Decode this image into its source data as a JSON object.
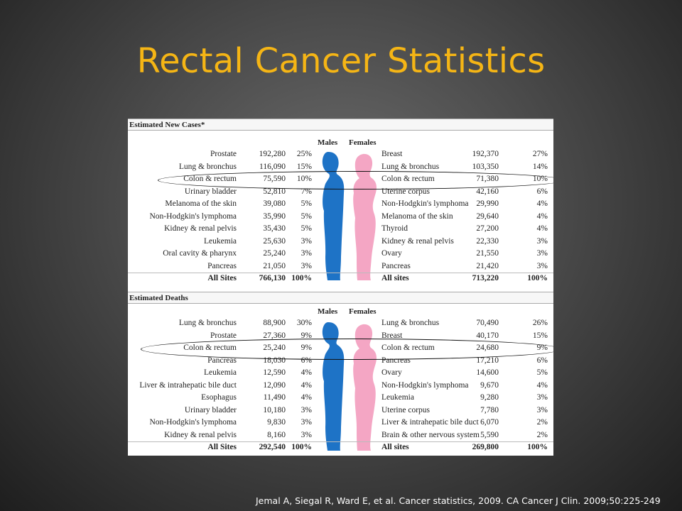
{
  "slide": {
    "title": "Rectal Cancer Statistics",
    "citation": "Jemal A, Siegal R, Ward E, et al. Cancer statistics, 2009. CA Cancer J Clin. 2009;50:225-249"
  },
  "table": {
    "colors": {
      "males": "#1e73c6",
      "females": "#f4a6c4",
      "title": "#f5b515"
    },
    "new_cases": {
      "header": "Estimated New Cases*",
      "males_label": "Males",
      "females_label": "Females",
      "rows": [
        {
          "m_site": "Prostate",
          "m_count": "192,280",
          "m_pct": "25%",
          "f_site": "Breast",
          "f_count": "192,370",
          "f_pct": "27%"
        },
        {
          "m_site": "Lung & bronchus",
          "m_count": "116,090",
          "m_pct": "15%",
          "f_site": "Lung & bronchus",
          "f_count": "103,350",
          "f_pct": "14%"
        },
        {
          "m_site": "Colon & rectum",
          "m_count": "75,590",
          "m_pct": "10%",
          "f_site": "Colon & rectum",
          "f_count": "71,380",
          "f_pct": "10%"
        },
        {
          "m_site": "Urinary bladder",
          "m_count": "52,810",
          "m_pct": "7%",
          "f_site": "Uterine corpus",
          "f_count": "42,160",
          "f_pct": "6%"
        },
        {
          "m_site": "Melanoma of the skin",
          "m_count": "39,080",
          "m_pct": "5%",
          "f_site": "Non-Hodgkin's lymphoma",
          "f_count": "29,990",
          "f_pct": "4%"
        },
        {
          "m_site": "Non-Hodgkin's lymphoma",
          "m_count": "35,990",
          "m_pct": "5%",
          "f_site": "Melanoma of the skin",
          "f_count": "29,640",
          "f_pct": "4%"
        },
        {
          "m_site": "Kidney & renal pelvis",
          "m_count": "35,430",
          "m_pct": "5%",
          "f_site": "Thyroid",
          "f_count": "27,200",
          "f_pct": "4%"
        },
        {
          "m_site": "Leukemia",
          "m_count": "25,630",
          "m_pct": "3%",
          "f_site": "Kidney & renal pelvis",
          "f_count": "22,330",
          "f_pct": "3%"
        },
        {
          "m_site": "Oral cavity & pharynx",
          "m_count": "25,240",
          "m_pct": "3%",
          "f_site": "Ovary",
          "f_count": "21,550",
          "f_pct": "3%"
        },
        {
          "m_site": "Pancreas",
          "m_count": "21,050",
          "m_pct": "3%",
          "f_site": "Pancreas",
          "f_count": "21,420",
          "f_pct": "3%"
        },
        {
          "m_site": "All Sites",
          "m_count": "766,130",
          "m_pct": "100%",
          "f_site": "All sites",
          "f_count": "713,220",
          "f_pct": "100%"
        }
      ]
    },
    "deaths": {
      "header": "Estimated Deaths",
      "males_label": "Males",
      "females_label": "Females",
      "rows": [
        {
          "m_site": "Lung & bronchus",
          "m_count": "88,900",
          "m_pct": "30%",
          "f_site": "Lung & bronchus",
          "f_count": "70,490",
          "f_pct": "26%"
        },
        {
          "m_site": "Prostate",
          "m_count": "27,360",
          "m_pct": "9%",
          "f_site": "Breast",
          "f_count": "40,170",
          "f_pct": "15%"
        },
        {
          "m_site": "Colon & rectum",
          "m_count": "25,240",
          "m_pct": "9%",
          "f_site": "Colon & rectum",
          "f_count": "24,680",
          "f_pct": "9%"
        },
        {
          "m_site": "Pancreas",
          "m_count": "18,030",
          "m_pct": "6%",
          "f_site": "Pancreas",
          "f_count": "17,210",
          "f_pct": "6%"
        },
        {
          "m_site": "Leukemia",
          "m_count": "12,590",
          "m_pct": "4%",
          "f_site": "Ovary",
          "f_count": "14,600",
          "f_pct": "5%"
        },
        {
          "m_site": "Liver & intrahepatic bile duct",
          "m_count": "12,090",
          "m_pct": "4%",
          "f_site": "Non-Hodgkin's lymphoma",
          "f_count": "9,670",
          "f_pct": "4%"
        },
        {
          "m_site": "Esophagus",
          "m_count": "11,490",
          "m_pct": "4%",
          "f_site": "Leukemia",
          "f_count": "9,280",
          "f_pct": "3%"
        },
        {
          "m_site": "Urinary bladder",
          "m_count": "10,180",
          "m_pct": "3%",
          "f_site": "Uterine corpus",
          "f_count": "7,780",
          "f_pct": "3%"
        },
        {
          "m_site": "Non-Hodgkin's lymphoma",
          "m_count": "9,830",
          "m_pct": "3%",
          "f_site": "Liver & intrahepatic bile duct",
          "f_count": "6,070",
          "f_pct": "2%"
        },
        {
          "m_site": "Kidney & renal pelvis",
          "m_count": "8,160",
          "m_pct": "3%",
          "f_site": "Brain & other nervous system",
          "f_count": "5,590",
          "f_pct": "2%"
        },
        {
          "m_site": "All Sites",
          "m_count": "292,540",
          "m_pct": "100%",
          "f_site": "All sites",
          "f_count": "269,800",
          "f_pct": "100%"
        }
      ]
    }
  }
}
